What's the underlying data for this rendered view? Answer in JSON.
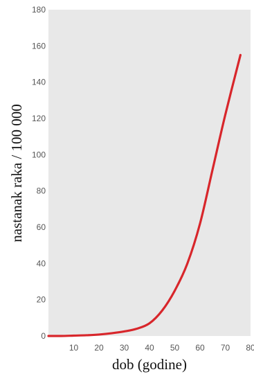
{
  "chart_data": {
    "type": "line",
    "title": "",
    "xlabel": "dob (godine)",
    "ylabel": "nastanak raka / 100 000",
    "xlim": [
      0,
      80
    ],
    "ylim": [
      0,
      180
    ],
    "x_ticks": [
      "10",
      "20",
      "30",
      "40",
      "50",
      "60",
      "70",
      "80"
    ],
    "y_ticks": [
      "0",
      "20",
      "40",
      "60",
      "80",
      "100",
      "120",
      "140",
      "160",
      "180"
    ],
    "grid": false,
    "legend": "none",
    "series": [
      {
        "color": "#d8262b",
        "x": [
          0,
          5,
          10,
          15,
          20,
          25,
          30,
          35,
          40,
          45,
          50,
          55,
          60,
          65,
          70,
          76
        ],
        "y": [
          0,
          0,
          0.2,
          0.4,
          0.8,
          1.5,
          2.5,
          4,
          7,
          14,
          25,
          40,
          62,
          92,
          122,
          155
        ]
      }
    ],
    "plot_background": "#e8e8e8"
  }
}
